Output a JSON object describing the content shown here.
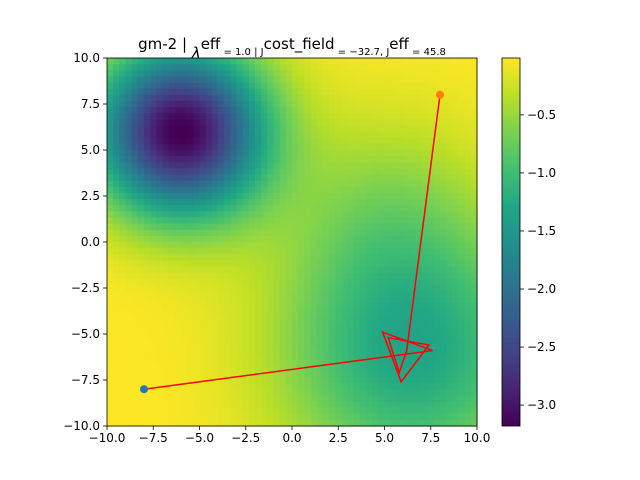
{
  "chart_data": {
    "type": "heatmap-path",
    "title_segments": [
      "gm-2 |  ",
      "λ",
      "eff",
      " = 1.0 | J",
      "cost_field",
      " = −32.7, J",
      "eff",
      " = 45.8"
    ],
    "colormap": "viridis",
    "field": [
      {
        "center": [
          -6,
          6
        ],
        "amplitude": -3.2,
        "sigma": 3.2
      },
      {
        "center": [
          6.5,
          -6
        ],
        "amplitude": -1.3,
        "sigma": 5
      },
      {
        "center": [
          5,
          2
        ],
        "amplitude": -0.4,
        "sigma": 4
      }
    ],
    "clim": [
      -3.18,
      -0.01
    ],
    "cticks": [
      {
        "value": -0.5,
        "label": "−0.5"
      },
      {
        "value": -1.0,
        "label": "−1.0"
      },
      {
        "value": -1.5,
        "label": "−1.5"
      },
      {
        "value": -2.0,
        "label": "−2.0"
      },
      {
        "value": -2.5,
        "label": "−2.5"
      },
      {
        "value": -3.0,
        "label": "−3.0"
      }
    ],
    "xlim": [
      -10,
      10
    ],
    "ylim": [
      -10,
      10
    ],
    "xticks": [
      {
        "value": -10,
        "label": "−10.0"
      },
      {
        "value": -7.5,
        "label": "−7.5"
      },
      {
        "value": -5,
        "label": "−5.0"
      },
      {
        "value": -2.5,
        "label": "−2.5"
      },
      {
        "value": 0,
        "label": "0.0"
      },
      {
        "value": 2.5,
        "label": "2.5"
      },
      {
        "value": 5,
        "label": "5.0"
      },
      {
        "value": 7.5,
        "label": "7.5"
      },
      {
        "value": 10,
        "label": "10.0"
      }
    ],
    "yticks": [
      {
        "value": -10,
        "label": "−10.0"
      },
      {
        "value": -7.5,
        "label": "−7.5"
      },
      {
        "value": -5,
        "label": "−5.0"
      },
      {
        "value": -2.5,
        "label": "−2.5"
      },
      {
        "value": 0,
        "label": "0.0"
      },
      {
        "value": 2.5,
        "label": "2.5"
      },
      {
        "value": 5,
        "label": "5.0"
      },
      {
        "value": 7.5,
        "label": "7.5"
      },
      {
        "value": 10,
        "label": "10.0"
      }
    ],
    "path": {
      "color": "#ff0000",
      "x": [
        -8,
        7.6,
        4.9,
        5.9,
        7.4,
        5.2,
        5.8,
        6.2,
        8
      ],
      "y": [
        -8,
        -5.9,
        -4.9,
        -7.6,
        -5.6,
        -5.2,
        -7.1,
        -5.9,
        8
      ]
    },
    "start": {
      "x": -8,
      "y": -8,
      "color": "#1f77b4"
    },
    "end": {
      "x": 8,
      "y": 8,
      "color": "#ff7f0e"
    }
  }
}
